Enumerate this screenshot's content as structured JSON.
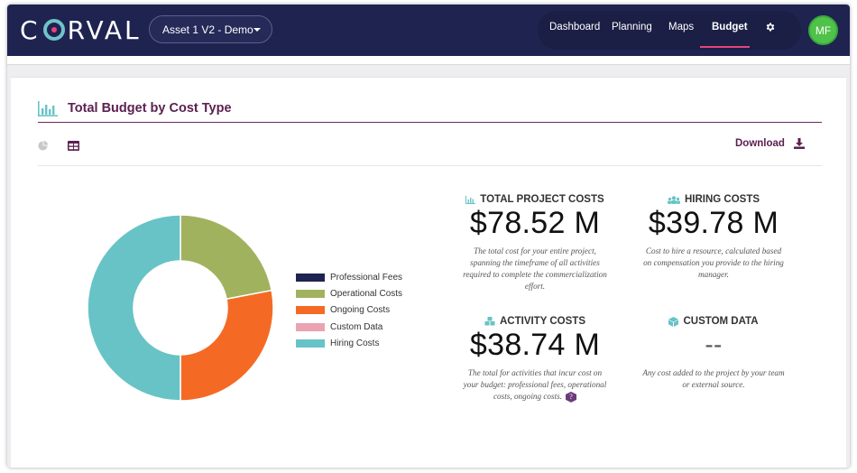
{
  "app": {
    "logo_text_1": "C",
    "logo_text_2": "RVAL"
  },
  "header": {
    "asset_select": "Asset 1 V2 - Demo",
    "nav": [
      {
        "label": "Dashboard"
      },
      {
        "label": "Planning"
      },
      {
        "label": "Maps"
      },
      {
        "label": "Budget"
      }
    ],
    "active_nav": "Budget",
    "avatar_initials": "MF",
    "settings_icon": "gear-icon"
  },
  "card": {
    "title": "Total Budget by Cost Type",
    "download_label": "Download"
  },
  "chart_data": {
    "type": "pie",
    "categories": [
      "Professional Fees",
      "Operational Costs",
      "Ongoing Costs",
      "Custom Data",
      "Hiring Costs"
    ],
    "values": [
      0,
      0.22,
      0.28,
      0,
      0.5
    ],
    "colors": [
      "#1f2350",
      "#a1b25f",
      "#f46a25",
      "#eba3b2",
      "#67c3c6"
    ],
    "legend_position": "right"
  },
  "stats": {
    "total_project": {
      "title": "TOTAL PROJECT COSTS",
      "value": "$78.52 M",
      "desc": "The total cost for your entire project, spanning the timeframe of all activities required to complete the commercialization effort."
    },
    "hiring": {
      "title": "HIRING COSTS",
      "value": "$39.78 M",
      "desc": "Cost to hire a resource, calculated based on compensation you provide to the hiring manager."
    },
    "activity": {
      "title": "ACTIVITY COSTS",
      "value": "$38.74 M",
      "desc": "The total for activities that incur cost on your budget: professional fees, operational costs, ongoing costs.",
      "help_label": "?"
    },
    "custom": {
      "title": "CUSTOM DATA",
      "value": "--",
      "desc": "Any cost added to the project by your team or external source."
    }
  }
}
